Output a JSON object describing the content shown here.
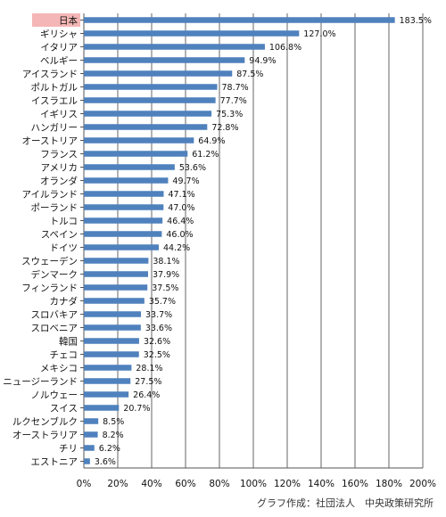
{
  "chart_data": {
    "type": "bar",
    "orientation": "horizontal",
    "categories": [
      "日本",
      "ギリシャ",
      "イタリア",
      "ベルギー",
      "アイスランド",
      "ポルトガル",
      "イスラエル",
      "イギリス",
      "ハンガリー",
      "オーストリア",
      "フランス",
      "アメリカ",
      "オランダ",
      "アイルランド",
      "ポーランド",
      "トルコ",
      "スペイン",
      "ドイツ",
      "スウェーデン",
      "デンマーク",
      "フィンランド",
      "カナダ",
      "スロバキア",
      "スロベニア",
      "韓国",
      "チェコ",
      "メキシコ",
      "ニュージーランド",
      "ノルウェー",
      "スイス",
      "ルクセンブルク",
      "オーストラリア",
      "チリ",
      "エストニア"
    ],
    "values": [
      183.5,
      127.0,
      106.8,
      94.9,
      87.5,
      78.7,
      77.7,
      75.3,
      72.8,
      64.9,
      61.2,
      53.6,
      49.7,
      47.1,
      47.0,
      46.4,
      46.0,
      44.2,
      38.1,
      37.9,
      37.5,
      35.7,
      33.7,
      33.6,
      32.6,
      32.5,
      28.1,
      27.5,
      26.4,
      20.7,
      8.5,
      8.2,
      6.2,
      3.6
    ],
    "value_labels": [
      "183.5%",
      "127.0%",
      "106.8%",
      "94.9%",
      "87.5%",
      "78.7%",
      "77.7%",
      "75.3%",
      "72.8%",
      "64.9%",
      "61.2%",
      "53.6%",
      "49.7%",
      "47.1%",
      "47.0%",
      "46.4%",
      "46.0%",
      "44.2%",
      "38.1%",
      "37.9%",
      "37.5%",
      "35.7%",
      "33.7%",
      "33.6%",
      "32.6%",
      "32.5%",
      "28.1%",
      "27.5%",
      "26.4%",
      "20.7%",
      "8.5%",
      "8.2%",
      "6.2%",
      "3.6%"
    ],
    "xticks": [
      "0%",
      "20%",
      "40%",
      "60%",
      "80%",
      "100%",
      "120%",
      "140%",
      "160%",
      "180%",
      "200%"
    ],
    "xlim": [
      0,
      200
    ],
    "highlight_category": "日本",
    "grid": "vertical",
    "colors": {
      "bar": "#4f81bd",
      "highlight_bg": "#f4b6b6",
      "grid": "#7f7f7f"
    }
  },
  "credit": "グラフ作成：社団法人　中央政策研究所"
}
